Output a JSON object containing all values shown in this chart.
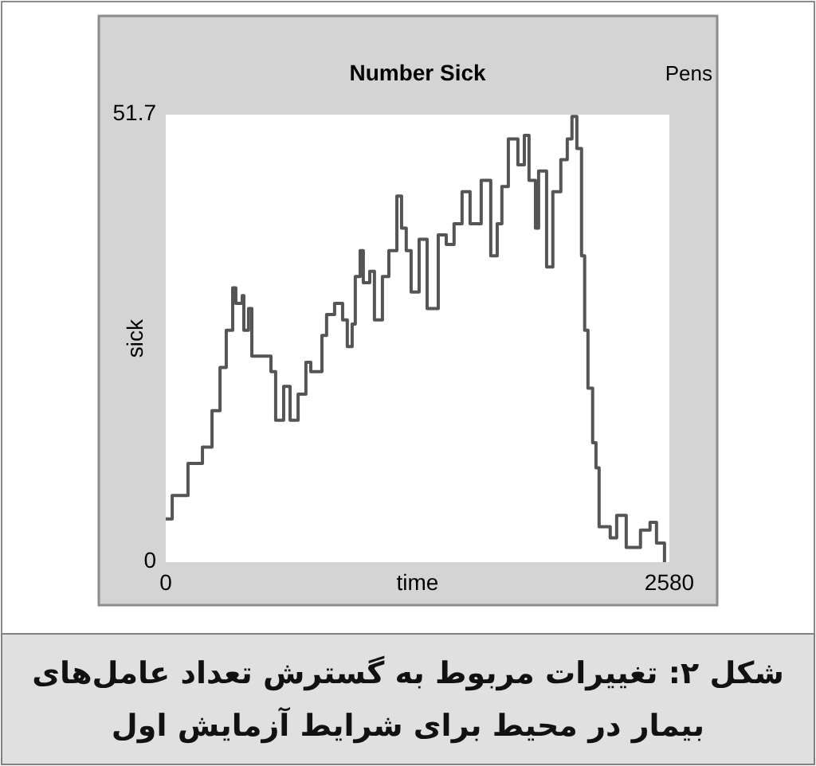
{
  "chart_data": {
    "type": "step",
    "title": "Number Sick",
    "xlabel": "time",
    "ylabel": "sick",
    "annotations": [
      "Pens",
      "شکل ۲: تغییرات مربوط به گسترش تعداد عامل‌های بیمار در محیط برای شرایط آزمایش اول"
    ],
    "x": [
      0,
      33,
      114,
      188,
      237,
      278,
      310,
      343,
      359,
      392,
      400,
      424,
      441,
      498,
      539,
      563,
      604,
      637,
      678,
      718,
      743,
      800,
      824,
      865,
      906,
      930,
      955,
      971,
      996,
      1012,
      1045,
      1069,
      1110,
      1143,
      1184,
      1208,
      1232,
      1257,
      1298,
      1339,
      1396,
      1437,
      1477,
      1518,
      1559,
      1616,
      1665,
      1698,
      1722,
      1755,
      1804,
      1837,
      1861,
      1894,
      1910,
      1951,
      1983,
      2024,
      2057,
      2081,
      2106,
      2130,
      2146,
      2163,
      2187,
      2204,
      2220,
      2277,
      2310,
      2359,
      2432,
      2481,
      2514,
      2555
    ],
    "values": [
      5.0,
      7.7,
      11.4,
      13.3,
      17.5,
      22.5,
      26.8,
      31.7,
      29.9,
      30.8,
      26.8,
      29.3,
      23.8,
      23.8,
      22.0,
      16.4,
      20.3,
      16.4,
      19.4,
      23.1,
      22.0,
      26.2,
      28.6,
      29.9,
      28.0,
      24.9,
      27.5,
      33.0,
      36.0,
      32.3,
      33.6,
      28.0,
      33.0,
      36.0,
      42.3,
      38.6,
      36.0,
      31.2,
      37.3,
      29.3,
      37.8,
      36.7,
      39.1,
      42.8,
      39.1,
      44.1,
      35.4,
      39.1,
      43.4,
      48.9,
      45.9,
      49.3,
      44.1,
      38.6,
      45.2,
      34.1,
      42.8,
      46.5,
      48.9,
      51.5,
      47.8,
      35.4,
      26.8,
      20.1,
      13.8,
      10.9,
      4.1,
      2.8,
      5.4,
      1.7,
      3.7,
      4.6,
      2.2,
      0
    ],
    "color": "#555555",
    "xlim": [
      0,
      2580
    ],
    "ylim": [
      0,
      51.7
    ],
    "xticks": [
      0,
      2580
    ],
    "yticks": [
      0,
      51.7
    ]
  }
}
